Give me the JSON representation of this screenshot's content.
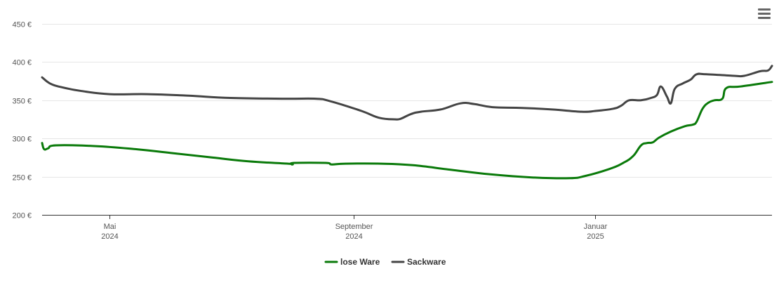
{
  "menu": {
    "icon": "hamburger-menu-icon"
  },
  "colors": {
    "lose_ware": "#0a7a0a",
    "sackware": "#444444",
    "grid": "#e6e6e6"
  },
  "chart_data": {
    "type": "line",
    "title": "",
    "xlabel": "",
    "ylabel": "",
    "ylim": [
      200,
      450
    ],
    "y_ticks": [
      200,
      250,
      300,
      350,
      400,
      450
    ],
    "y_tick_labels": [
      "200 €",
      "250 €",
      "300 €",
      "350 €",
      "400 €",
      "450 €"
    ],
    "x_range": [
      "2024-03-28",
      "2025-03-31"
    ],
    "x_ticks": [
      {
        "date": "2024-05-01",
        "label1": "Mai",
        "label2": "2024"
      },
      {
        "date": "2024-09-01",
        "label1": "September",
        "label2": "2024"
      },
      {
        "date": "2025-01-01",
        "label1": "Januar",
        "label2": "2025"
      }
    ],
    "grid": true,
    "legend": "bottom-center",
    "series": [
      {
        "name": "lose Ware",
        "color": "#0a7a0a",
        "points": [
          [
            "2024-03-28",
            294
          ],
          [
            "2024-03-29",
            286
          ],
          [
            "2024-03-31",
            287
          ],
          [
            "2024-04-04",
            291
          ],
          [
            "2024-04-24",
            290
          ],
          [
            "2024-05-14",
            286
          ],
          [
            "2024-06-01",
            281
          ],
          [
            "2024-06-22",
            275
          ],
          [
            "2024-07-10",
            270
          ],
          [
            "2024-07-30",
            267
          ],
          [
            "2024-08-01",
            266
          ],
          [
            "2024-08-02",
            268
          ],
          [
            "2024-08-18",
            268
          ],
          [
            "2024-08-21",
            266
          ],
          [
            "2024-08-28",
            267
          ],
          [
            "2024-09-15",
            267
          ],
          [
            "2024-10-01",
            265
          ],
          [
            "2024-10-20",
            259
          ],
          [
            "2024-11-09",
            253
          ],
          [
            "2024-11-30",
            249
          ],
          [
            "2024-12-19",
            248
          ],
          [
            "2024-12-27",
            251
          ],
          [
            "2025-01-08",
            260
          ],
          [
            "2025-01-15",
            268
          ],
          [
            "2025-01-20",
            277
          ],
          [
            "2025-01-24",
            291
          ],
          [
            "2025-01-27",
            294
          ],
          [
            "2025-01-30",
            295
          ],
          [
            "2025-02-02",
            301
          ],
          [
            "2025-02-08",
            309
          ],
          [
            "2025-02-15",
            316
          ],
          [
            "2025-02-19",
            318
          ],
          [
            "2025-02-21",
            322
          ],
          [
            "2025-02-24",
            339
          ],
          [
            "2025-02-27",
            347
          ],
          [
            "2025-03-02",
            350
          ],
          [
            "2025-03-06",
            352
          ],
          [
            "2025-03-08",
            366
          ],
          [
            "2025-03-15",
            368
          ],
          [
            "2025-03-31",
            374
          ]
        ]
      },
      {
        "name": "Sackware",
        "color": "#444444",
        "points": [
          [
            "2024-03-28",
            380
          ],
          [
            "2024-04-01",
            372
          ],
          [
            "2024-04-07",
            367
          ],
          [
            "2024-04-17",
            362
          ],
          [
            "2024-05-01",
            358
          ],
          [
            "2024-05-20",
            358
          ],
          [
            "2024-06-10",
            356
          ],
          [
            "2024-07-01",
            353
          ],
          [
            "2024-07-28",
            352
          ],
          [
            "2024-08-13",
            352
          ],
          [
            "2024-08-20",
            349
          ],
          [
            "2024-09-05",
            336
          ],
          [
            "2024-09-14",
            327
          ],
          [
            "2024-09-22",
            325
          ],
          [
            "2024-09-25",
            326
          ],
          [
            "2024-09-30",
            332
          ],
          [
            "2024-10-05",
            335
          ],
          [
            "2024-10-15",
            338
          ],
          [
            "2024-10-25",
            346
          ],
          [
            "2024-11-01",
            345
          ],
          [
            "2024-11-10",
            341
          ],
          [
            "2024-11-25",
            340
          ],
          [
            "2024-12-10",
            338
          ],
          [
            "2024-12-25",
            335
          ],
          [
            "2025-01-01",
            336
          ],
          [
            "2025-01-10",
            339
          ],
          [
            "2025-01-14",
            343
          ],
          [
            "2025-01-18",
            350
          ],
          [
            "2025-01-24",
            350
          ],
          [
            "2025-01-29",
            353
          ],
          [
            "2025-02-01",
            357
          ],
          [
            "2025-02-03",
            368
          ],
          [
            "2025-02-06",
            355
          ],
          [
            "2025-02-08",
            346
          ],
          [
            "2025-02-10",
            365
          ],
          [
            "2025-02-14",
            372
          ],
          [
            "2025-02-18",
            377
          ],
          [
            "2025-02-21",
            384
          ],
          [
            "2025-02-26",
            384
          ],
          [
            "2025-03-12",
            382
          ],
          [
            "2025-03-17",
            382
          ],
          [
            "2025-03-25",
            388
          ],
          [
            "2025-03-29",
            389
          ],
          [
            "2025-03-31",
            395
          ]
        ]
      }
    ]
  }
}
